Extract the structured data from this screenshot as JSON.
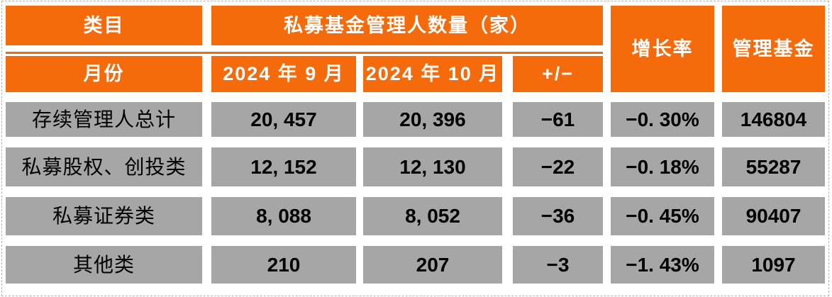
{
  "colors": {
    "header_bg": "#F56A0A",
    "header_text": "#FFFFFF",
    "cell_bg": "#A6A6A6",
    "cell_text": "#000000",
    "page_bg": "#FFFFFF",
    "page_border": "#B3B3B3"
  },
  "table": {
    "header": {
      "category_label": "类目",
      "month_label": "月份",
      "group_title": "私募基金管理人数量（家）",
      "sep_label": "2024 年 9 月",
      "oct_label": "2024 年 10 月",
      "delta_label": "+/−",
      "growth_label": "增长率",
      "funds_label": "管理基金"
    },
    "rows": [
      {
        "label": "存续管理人总计",
        "sep": "20, 457",
        "oct": "20, 396",
        "delta": "−61",
        "growth": "−0. 30%",
        "funds": "146804"
      },
      {
        "label": "私募股权、创投类",
        "sep": "12, 152",
        "oct": "12, 130",
        "delta": "−22",
        "growth": "−0. 18%",
        "funds": "55287"
      },
      {
        "label": "私募证券类",
        "sep": "8, 088",
        "oct": "8, 052",
        "delta": "−36",
        "growth": "−0. 45%",
        "funds": "90407"
      },
      {
        "label": "其他类",
        "sep": "210",
        "oct": "207",
        "delta": "−3",
        "growth": "−1. 43%",
        "funds": "1097"
      }
    ]
  },
  "chart_data": {
    "type": "table",
    "title": "私募基金管理人数量（家）",
    "columns": [
      "类目/月份",
      "2024年9月",
      "2024年10月",
      "+/−",
      "增长率",
      "管理基金"
    ],
    "rows": [
      {
        "category": "存续管理人总计",
        "sep_2024": 20457,
        "oct_2024": 20396,
        "change": -61,
        "growth_rate_pct": -0.3,
        "managed_funds": 146804
      },
      {
        "category": "私募股权、创投类",
        "sep_2024": 12152,
        "oct_2024": 12130,
        "change": -22,
        "growth_rate_pct": -0.18,
        "managed_funds": 55287
      },
      {
        "category": "私募证券类",
        "sep_2024": 8088,
        "oct_2024": 8052,
        "change": -36,
        "growth_rate_pct": -0.45,
        "managed_funds": 90407
      },
      {
        "category": "其他类",
        "sep_2024": 210,
        "oct_2024": 207,
        "change": -3,
        "growth_rate_pct": -1.43,
        "managed_funds": 1097
      }
    ]
  }
}
